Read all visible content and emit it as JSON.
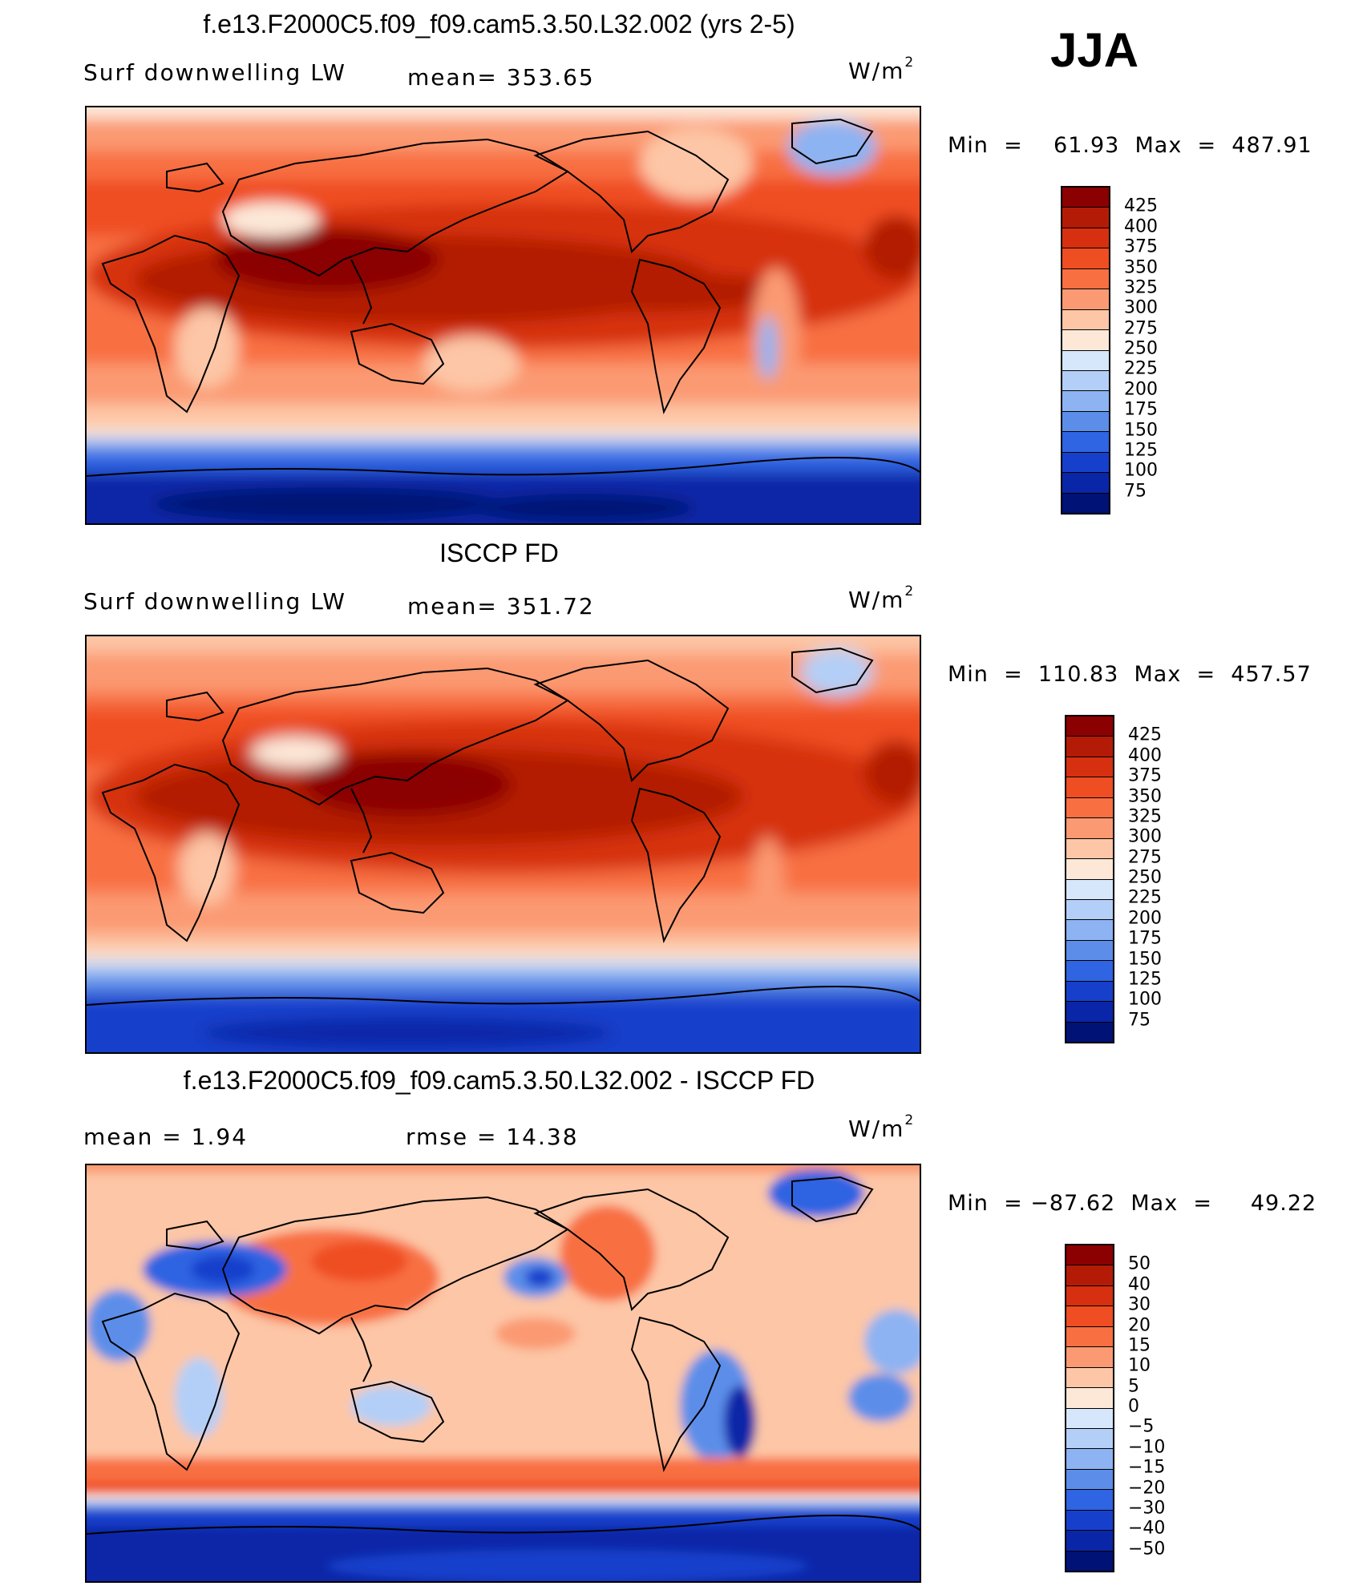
{
  "season": "JJA",
  "panels": [
    {
      "title": "f.e13.F2000C5.f09_f09.cam5.3.50.L32.002 (yrs 2-5)",
      "left_label": "Surf  downwelling  LW",
      "center_label": "mean=  353.65",
      "units": "W/m",
      "units_sup": "2",
      "min_max": "Min  =    61.93  Max  =  487.91",
      "colorbar": {
        "labels": [
          "425",
          "400",
          "375",
          "350",
          "325",
          "300",
          "275",
          "250",
          "225",
          "200",
          "175",
          "150",
          "125",
          "100",
          "75"
        ],
        "colors": [
          "#8b0000",
          "#b31b06",
          "#d63010",
          "#ef4d22",
          "#f86f42",
          "#fb9a72",
          "#fdc6a6",
          "#fde8d8",
          "#d6e6fb",
          "#b3cff7",
          "#8db3f2",
          "#5c8ee9",
          "#2f64e2",
          "#1640cc",
          "#0a26a8",
          "#001275"
        ]
      }
    },
    {
      "title": "ISCCP FD",
      "left_label": "Surf  downwelling  LW",
      "center_label": "mean=  351.72",
      "units": "W/m",
      "units_sup": "2",
      "min_max": "Min  =  110.83  Max  =  457.57",
      "colorbar": {
        "labels": [
          "425",
          "400",
          "375",
          "350",
          "325",
          "300",
          "275",
          "250",
          "225",
          "200",
          "175",
          "150",
          "125",
          "100",
          "75"
        ],
        "colors": [
          "#8b0000",
          "#b31b06",
          "#d63010",
          "#ef4d22",
          "#f86f42",
          "#fb9a72",
          "#fdc6a6",
          "#fde8d8",
          "#d6e6fb",
          "#b3cff7",
          "#8db3f2",
          "#5c8ee9",
          "#2f64e2",
          "#1640cc",
          "#0a26a8",
          "#001275"
        ]
      }
    },
    {
      "title": "f.e13.F2000C5.f09_f09.cam5.3.50.L32.002 - ISCCP FD",
      "left_label": "mean  =      1.94",
      "center_label": "rmse  =     14.38",
      "units": "W/m",
      "units_sup": "2",
      "min_max": "Min  = −87.62  Max  =     49.22",
      "colorbar": {
        "labels": [
          "50",
          "40",
          "30",
          "20",
          "15",
          "10",
          "5",
          "0",
          "−5",
          "−10",
          "−15",
          "−20",
          "−30",
          "−40",
          "−50"
        ],
        "colors": [
          "#8b0000",
          "#b31b06",
          "#d63010",
          "#ef4d22",
          "#f86f42",
          "#fb9a72",
          "#fdc6a6",
          "#fde8d8",
          "#d6e6fb",
          "#b3cff7",
          "#8db3f2",
          "#5c8ee9",
          "#2f64e2",
          "#1640cc",
          "#0a26a8",
          "#001275"
        ]
      }
    }
  ]
}
